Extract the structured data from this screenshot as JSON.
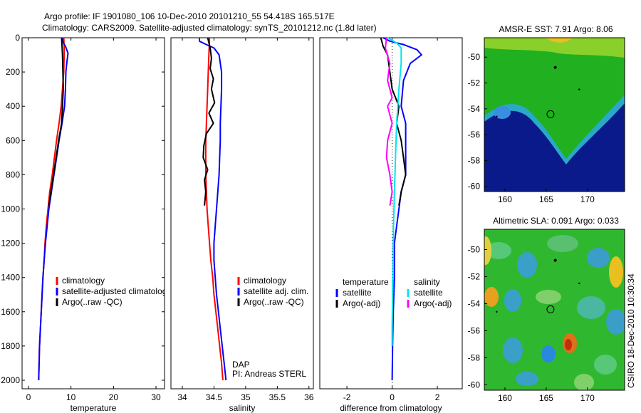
{
  "title_line1": "Argo profile: IF 1901080_106 10-Dec-2010 20101210_55 54.418S 165.517E",
  "title_line2": "Climatology: CARS2009. Satellite-adjusted climatology: synTS_20101212.nc (1.8d later)",
  "credit": "CSIRO 18-Dec-2010 10:30:34",
  "colors": {
    "climatology": "#ff0000",
    "satellite": "#0000ff",
    "argo": "#000000",
    "argo_adj": "#ff00ff",
    "salinity_sat": "#00e5ee"
  },
  "chart_data": [
    {
      "id": "temperature",
      "type": "line",
      "xlabel": "temperature",
      "xticks": [
        0,
        10,
        20,
        30
      ],
      "yticks": [
        0,
        200,
        400,
        600,
        800,
        1000,
        1200,
        1400,
        1600,
        1800,
        2000
      ],
      "xlim": [
        -1.5,
        32
      ],
      "ylim": [
        2050,
        0
      ],
      "legend": [
        "climatology",
        "satellite-adjusted climatology",
        "Argo(..raw -QC)"
      ],
      "series": [
        {
          "name": "climatology",
          "color": "#ff0000",
          "points": [
            [
              8.3,
              0
            ],
            [
              8.4,
              50
            ],
            [
              8.4,
              100
            ],
            [
              8.3,
              200
            ],
            [
              8.0,
              300
            ],
            [
              7.7,
              400
            ],
            [
              7.2,
              500
            ],
            [
              6.6,
              600
            ],
            [
              6.1,
              700
            ],
            [
              5.6,
              800
            ],
            [
              5.0,
              900
            ],
            [
              4.6,
              1000
            ],
            [
              4.2,
              1100
            ],
            [
              3.9,
              1200
            ],
            [
              3.7,
              1300
            ],
            [
              3.4,
              1400
            ],
            [
              3.2,
              1500
            ],
            [
              3.0,
              1600
            ],
            [
              2.8,
              1700
            ],
            [
              2.6,
              1800
            ],
            [
              2.5,
              1900
            ],
            [
              2.4,
              2000
            ]
          ]
        },
        {
          "name": "satellite-adjusted climatology",
          "color": "#0000ff",
          "points": [
            [
              7.9,
              0
            ],
            [
              8.2,
              30
            ],
            [
              8.7,
              50
            ],
            [
              9.3,
              90
            ],
            [
              9.0,
              150
            ],
            [
              8.8,
              200
            ],
            [
              8.7,
              300
            ],
            [
              8.5,
              400
            ],
            [
              7.9,
              500
            ],
            [
              7.2,
              600
            ],
            [
              6.6,
              700
            ],
            [
              6.0,
              800
            ],
            [
              5.4,
              900
            ],
            [
              4.8,
              1000
            ],
            [
              4.4,
              1100
            ],
            [
              4.0,
              1200
            ],
            [
              3.7,
              1300
            ],
            [
              3.4,
              1400
            ],
            [
              3.2,
              1500
            ],
            [
              3.0,
              1600
            ],
            [
              2.8,
              1700
            ],
            [
              2.6,
              1800
            ],
            [
              2.5,
              1900
            ],
            [
              2.4,
              2000
            ]
          ]
        },
        {
          "name": "Argo(..raw -QC)",
          "color": "#000000",
          "points": [
            [
              7.8,
              0
            ],
            [
              7.9,
              50
            ],
            [
              8.0,
              100
            ],
            [
              8.1,
              200
            ],
            [
              8.2,
              300
            ],
            [
              8.0,
              400
            ],
            [
              7.8,
              500
            ],
            [
              7.1,
              600
            ],
            [
              6.5,
              700
            ],
            [
              5.9,
              800
            ],
            [
              5.3,
              900
            ],
            [
              4.8,
              980
            ]
          ]
        }
      ]
    },
    {
      "id": "salinity",
      "type": "line",
      "xlabel": "salinity",
      "xticks": [
        34,
        34.5,
        35,
        35.5,
        36
      ],
      "yticks": [],
      "xlim": [
        33.82,
        36.07
      ],
      "ylim": [
        2050,
        0
      ],
      "legend": [
        "climatology",
        "satellite adj. clim.",
        "Argo(..raw -QC)"
      ],
      "annotations": [
        "DAP",
        "PI: Andreas STERL"
      ],
      "series": [
        {
          "name": "climatology",
          "color": "#ff0000",
          "points": [
            [
              34.43,
              0
            ],
            [
              34.42,
              100
            ],
            [
              34.41,
              200
            ],
            [
              34.4,
              300
            ],
            [
              34.39,
              400
            ],
            [
              34.38,
              500
            ],
            [
              34.37,
              600
            ],
            [
              34.37,
              700
            ],
            [
              34.37,
              800
            ],
            [
              34.38,
              900
            ],
            [
              34.39,
              1000
            ],
            [
              34.41,
              1100
            ],
            [
              34.43,
              1200
            ],
            [
              34.45,
              1300
            ],
            [
              34.48,
              1400
            ],
            [
              34.5,
              1500
            ],
            [
              34.53,
              1600
            ],
            [
              34.56,
              1700
            ],
            [
              34.59,
              1800
            ],
            [
              34.62,
              1900
            ],
            [
              34.64,
              2000
            ]
          ]
        },
        {
          "name": "satellite adj. clim.",
          "color": "#0000ff",
          "points": [
            [
              34.27,
              0
            ],
            [
              34.27,
              20
            ],
            [
              34.35,
              35
            ],
            [
              34.5,
              60
            ],
            [
              34.58,
              100
            ],
            [
              34.62,
              200
            ],
            [
              34.62,
              300
            ],
            [
              34.61,
              400
            ],
            [
              34.6,
              500
            ],
            [
              34.6,
              600
            ],
            [
              34.59,
              700
            ],
            [
              34.58,
              800
            ],
            [
              34.56,
              900
            ],
            [
              34.54,
              1000
            ],
            [
              34.52,
              1100
            ],
            [
              34.5,
              1200
            ],
            [
              34.5,
              1300
            ],
            [
              34.52,
              1400
            ],
            [
              34.54,
              1500
            ],
            [
              34.57,
              1600
            ],
            [
              34.6,
              1700
            ],
            [
              34.63,
              1800
            ],
            [
              34.66,
              1900
            ],
            [
              34.69,
              2000
            ]
          ]
        },
        {
          "name": "Argo(..raw -QC)",
          "color": "#000000",
          "points": [
            [
              34.4,
              0
            ],
            [
              34.44,
              60
            ],
            [
              34.46,
              120
            ],
            [
              34.44,
              180
            ],
            [
              34.49,
              240
            ],
            [
              34.46,
              300
            ],
            [
              34.51,
              380
            ],
            [
              34.42,
              440
            ],
            [
              34.49,
              500
            ],
            [
              34.38,
              560
            ],
            [
              34.34,
              630
            ],
            [
              34.33,
              700
            ],
            [
              34.4,
              770
            ],
            [
              34.35,
              830
            ],
            [
              34.37,
              900
            ],
            [
              34.35,
              980
            ]
          ]
        }
      ]
    },
    {
      "id": "difference",
      "type": "line",
      "xlabel": "difference from climatology",
      "xticks": [
        -2,
        0,
        2
      ],
      "yticks": [],
      "xlim": [
        -3.2,
        3.1
      ],
      "ylim": [
        2050,
        0
      ],
      "legend_groups": [
        {
          "heading": "temperature",
          "items": [
            "satellite",
            "Argo(-adj)"
          ]
        },
        {
          "heading": "salinity",
          "items": [
            "satellite",
            "Argo(-adj)"
          ]
        }
      ],
      "series": [
        {
          "name": "satellite",
          "group": "temperature",
          "color": "#0000ff",
          "points": [
            [
              -0.4,
              0
            ],
            [
              -0.1,
              20
            ],
            [
              0.5,
              40
            ],
            [
              1.1,
              70
            ],
            [
              1.3,
              100
            ],
            [
              0.8,
              150
            ],
            [
              0.5,
              250
            ],
            [
              0.4,
              400
            ],
            [
              0.6,
              500
            ],
            [
              0.6,
              600
            ],
            [
              0.6,
              700
            ],
            [
              0.6,
              800
            ],
            [
              0.4,
              900
            ],
            [
              0.3,
              1000
            ],
            [
              0.2,
              1100
            ],
            [
              0.1,
              1200
            ],
            [
              0.1,
              1400
            ],
            [
              0.05,
              1600
            ],
            [
              0.02,
              1800
            ],
            [
              0.0,
              2000
            ]
          ]
        },
        {
          "name": "Argo(-adj)",
          "group": "temperature",
          "color": "#000000",
          "points": [
            [
              -0.5,
              0
            ],
            [
              -0.4,
              50
            ],
            [
              -0.2,
              100
            ],
            [
              -0.1,
              200
            ],
            [
              0.0,
              300
            ],
            [
              0.3,
              400
            ],
            [
              0.2,
              500
            ],
            [
              0.4,
              600
            ],
            [
              0.5,
              700
            ],
            [
              0.6,
              800
            ],
            [
              0.4,
              900
            ],
            [
              0.3,
              980
            ]
          ]
        },
        {
          "name": "satellite",
          "group": "salinity",
          "color": "#00e5ee",
          "points": [
            [
              -0.2,
              0
            ],
            [
              0.0,
              15
            ],
            [
              0.2,
              30
            ],
            [
              0.4,
              60
            ],
            [
              0.4,
              150
            ],
            [
              0.3,
              300
            ],
            [
              0.2,
              500
            ],
            [
              0.15,
              700
            ],
            [
              0.1,
              900
            ],
            [
              0.06,
              1100
            ],
            [
              0.04,
              1300
            ],
            [
              0.02,
              1500
            ],
            [
              0.0,
              1700
            ],
            [
              0.0,
              1800
            ]
          ]
        },
        {
          "name": "Argo(-adj)",
          "group": "salinity",
          "color": "#ff00ff",
          "points": [
            [
              -0.25,
              0
            ],
            [
              -0.3,
              60
            ],
            [
              -0.1,
              150
            ],
            [
              -0.2,
              250
            ],
            [
              0.0,
              350
            ],
            [
              -0.2,
              400
            ],
            [
              0.0,
              500
            ],
            [
              -0.2,
              600
            ],
            [
              -0.25,
              700
            ],
            [
              -0.1,
              800
            ],
            [
              0.0,
              900
            ],
            [
              -0.1,
              980
            ]
          ]
        }
      ]
    },
    {
      "id": "sst_map",
      "type": "heatmap",
      "title": "AMSR-E SST: 7.91 Argo: 8.06",
      "xticks": [
        160,
        165,
        170
      ],
      "yticks": [
        -50,
        -52,
        -54,
        -56,
        -58,
        -60
      ],
      "xlim": [
        157.5,
        174.5
      ],
      "ylim": [
        -60.4,
        -48.5
      ],
      "profile_location": [
        165.517,
        -54.418
      ]
    },
    {
      "id": "sla_map",
      "type": "heatmap",
      "title": "Altimetric SLA: 0.091 Argo: 0.033",
      "xticks": [
        160,
        165,
        170
      ],
      "yticks": [
        -50,
        -52,
        -54,
        -56,
        -58,
        -60
      ],
      "xlim": [
        157.5,
        174.5
      ],
      "ylim": [
        -60.4,
        -48.5
      ],
      "profile_location": [
        165.517,
        -54.418
      ]
    }
  ]
}
